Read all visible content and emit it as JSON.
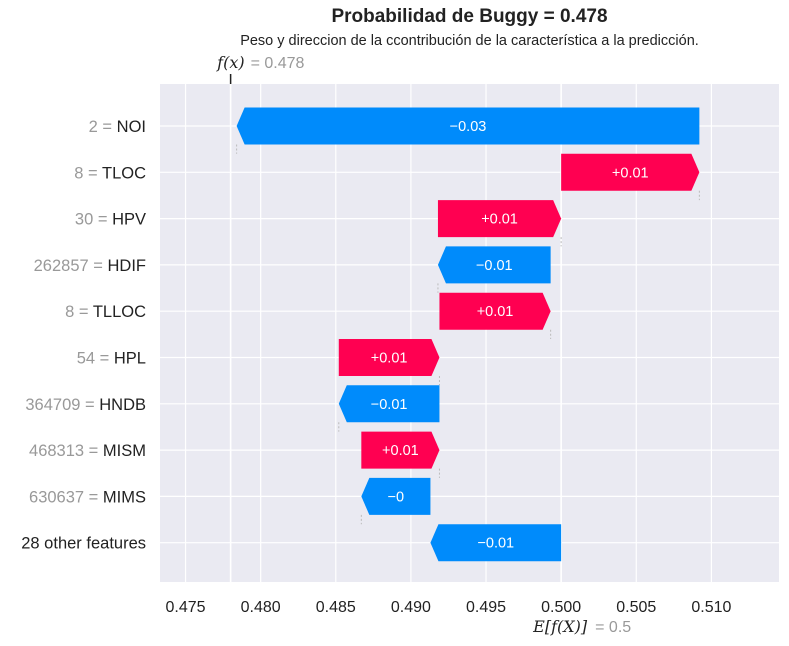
{
  "chart_data": {
    "type": "bar",
    "title": "Probabilidad de Buggy = 0.478",
    "subtitle": "Peso y direccion de la ccontribución de la característica a la predicción.",
    "fx_label": "f(x)",
    "fx_value_text": "= 0.478",
    "fx_value": 0.478,
    "efx_label": "E[f(X)]",
    "efx_value_text": "= 0.5",
    "efx_value": 0.5,
    "xlim": [
      0.4733,
      0.5145
    ],
    "xticks": [
      0.475,
      0.48,
      0.485,
      0.49,
      0.495,
      0.5,
      0.505,
      0.51
    ],
    "xtick_labels": [
      "0.475",
      "0.480",
      "0.485",
      "0.490",
      "0.495",
      "0.500",
      "0.505",
      "0.510"
    ],
    "grid": true,
    "colors": {
      "positive": "#ff0051",
      "negative": "#008bfb",
      "muted": "#999999",
      "text": "#222222",
      "plot_bg": "#eaeaf2"
    },
    "bars": [
      {
        "value_text": "2",
        "feature": "NOI",
        "start": 0.5092,
        "end": 0.4784,
        "label": "−0.03"
      },
      {
        "value_text": "8",
        "feature": "TLOC",
        "start": 0.5,
        "end": 0.5092,
        "label": "+0.01"
      },
      {
        "value_text": "30",
        "feature": "HPV",
        "start": 0.4918,
        "end": 0.5,
        "label": "+0.01"
      },
      {
        "value_text": "262857",
        "feature": "HDIF",
        "start": 0.4993,
        "end": 0.4918,
        "label": "−0.01"
      },
      {
        "value_text": "8",
        "feature": "TLLOC",
        "start": 0.4919,
        "end": 0.4993,
        "label": "+0.01"
      },
      {
        "value_text": "54",
        "feature": "HPL",
        "start": 0.4852,
        "end": 0.4919,
        "label": "+0.01"
      },
      {
        "value_text": "364709",
        "feature": "HNDB",
        "start": 0.4919,
        "end": 0.4852,
        "label": "−0.01"
      },
      {
        "value_text": "468313",
        "feature": "MISM",
        "start": 0.4867,
        "end": 0.4919,
        "label": "+0.01"
      },
      {
        "value_text": "630637",
        "feature": "MIMS",
        "start": 0.4913,
        "end": 0.4867,
        "label": "−0"
      },
      {
        "value_text": "",
        "feature": "28 other features",
        "start": 0.5,
        "end": 0.4913,
        "label": "−0.01"
      }
    ]
  }
}
